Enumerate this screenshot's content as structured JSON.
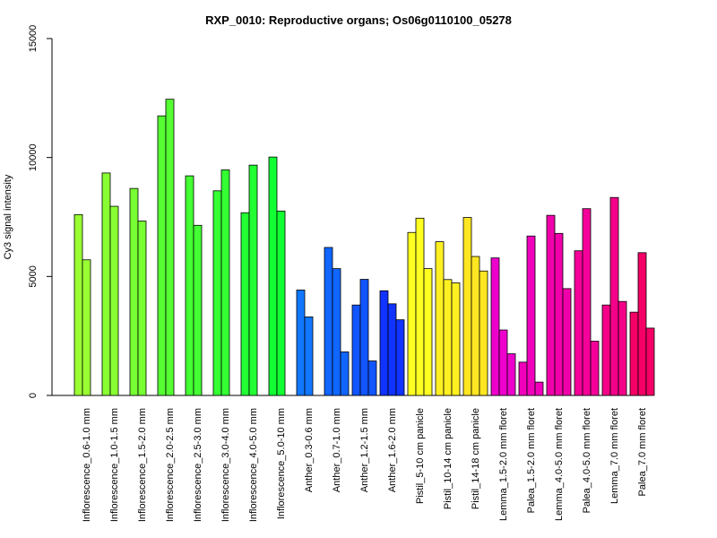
{
  "chart_data": {
    "type": "bar",
    "title": "RXP_0010: Reproductive organs; Os06g0110100_05278",
    "xlabel": "",
    "ylabel": "Cy3 signal intensity",
    "ylim": [
      0,
      15000
    ],
    "yticks": [
      0,
      5000,
      10000,
      15000
    ],
    "grid": false,
    "categories": [
      "Inflorescence_0.6-1.0 mm",
      "Inflorescence_1.0-1.5 mm",
      "Inflorescence_1.5-2.0 mm",
      "Inflorescence_2.0-2.5 mm",
      "Inflorescence_2.5-3.0 mm",
      "Inflorescence_3.0-4.0 mm",
      "Inflorescence_4.0-5.0 mm",
      "Inflorescence_5.0-10 mm",
      "Anther_0.3-0.6 mm",
      "Anther_0.7-1.0 mm",
      "Anther_1.2-1.5 mm",
      "Anther_1.6-2.0 mm",
      "Pistil_5-10 cm panicle",
      "Pistil_10-14 cm panicle",
      "Pistil_14-18 cm panicle",
      "Lemma_1.5-2.0 mm floret",
      "Palea_1.5-2.0 mm floret",
      "Lemma_4.0-5.0 mm floret",
      "Palea_4.0-5.0 mm floret",
      "Lemma_7.0 mm floret",
      "Palea_7.0 mm floret"
    ],
    "groups": [
      {
        "color": "#99FF33",
        "values": [
          7600,
          5700
        ]
      },
      {
        "color": "#88FF33",
        "values": [
          9350,
          7950
        ]
      },
      {
        "color": "#77FF33",
        "values": [
          8700,
          7330
        ]
      },
      {
        "color": "#55FF33",
        "values": [
          11750,
          12450
        ]
      },
      {
        "color": "#44FF33",
        "values": [
          9230,
          7150
        ]
      },
      {
        "color": "#33FF33",
        "values": [
          8600,
          9480
        ]
      },
      {
        "color": "#22FF33",
        "values": [
          7680,
          9680
        ]
      },
      {
        "color": "#11FF33",
        "values": [
          10020,
          7750
        ]
      },
      {
        "color": "#1177FF",
        "values": [
          4430,
          3300
        ]
      },
      {
        "color": "#1166FF",
        "values": [
          6220,
          5330,
          1830
        ]
      },
      {
        "color": "#1155FF",
        "values": [
          3800,
          4880,
          1450
        ]
      },
      {
        "color": "#1133FF",
        "values": [
          4400,
          3850,
          3180
        ]
      },
      {
        "color": "#FFFF22",
        "values": [
          6850,
          7450,
          5330
        ]
      },
      {
        "color": "#FFF022",
        "values": [
          6460,
          4870,
          4730
        ]
      },
      {
        "color": "#FFE622",
        "values": [
          7480,
          5840,
          5230
        ]
      },
      {
        "color": "#EE00CC",
        "values": [
          5780,
          2750,
          1750
        ]
      },
      {
        "color": "#F000BB",
        "values": [
          1400,
          6700,
          560
        ]
      },
      {
        "color": "#F000AA",
        "values": [
          7570,
          6810,
          4490
        ]
      },
      {
        "color": "#F50099",
        "values": [
          6080,
          7850,
          2280
        ]
      },
      {
        "color": "#F50088",
        "values": [
          3800,
          8320,
          3950
        ]
      },
      {
        "color": "#F50066",
        "values": [
          3500,
          6000,
          2830
        ]
      }
    ]
  }
}
